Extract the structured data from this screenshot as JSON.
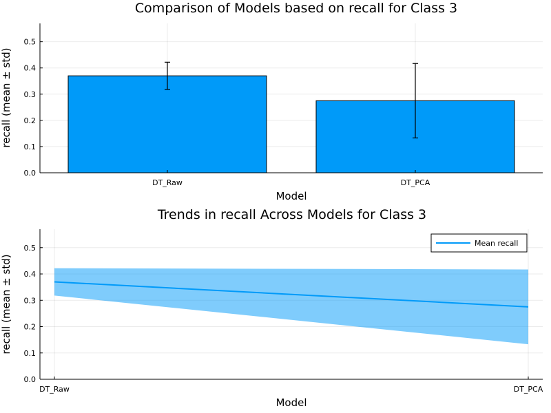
{
  "chart_data": [
    {
      "type": "bar",
      "title": "Comparison of Models based on recall for Class 3",
      "xlabel": "Model",
      "ylabel": "recall (mean ± std)",
      "categories": [
        "DT_Raw",
        "DT_PCA"
      ],
      "values": [
        0.37,
        0.275
      ],
      "errors": [
        0.052,
        0.142
      ],
      "ylim": [
        0,
        0.57
      ],
      "yticks": [
        "0.0",
        "0.1",
        "0.2",
        "0.3",
        "0.4",
        "0.5"
      ],
      "grid": true,
      "color": "#009AF9"
    },
    {
      "type": "line",
      "title": "Trends in recall Across Models for Class 3",
      "xlabel": "Model",
      "ylabel": "recall (mean ± std)",
      "categories": [
        "DT_Raw",
        "DT_PCA"
      ],
      "series": [
        {
          "name": "Mean recall",
          "values": [
            0.37,
            0.275
          ],
          "lower": [
            0.318,
            0.133
          ],
          "upper": [
            0.422,
            0.417
          ],
          "color": "#009AF9"
        }
      ],
      "ylim": [
        0,
        0.57
      ],
      "yticks": [
        "0.0",
        "0.1",
        "0.2",
        "0.3",
        "0.4",
        "0.5"
      ],
      "grid": true,
      "legend": "top-right"
    }
  ]
}
